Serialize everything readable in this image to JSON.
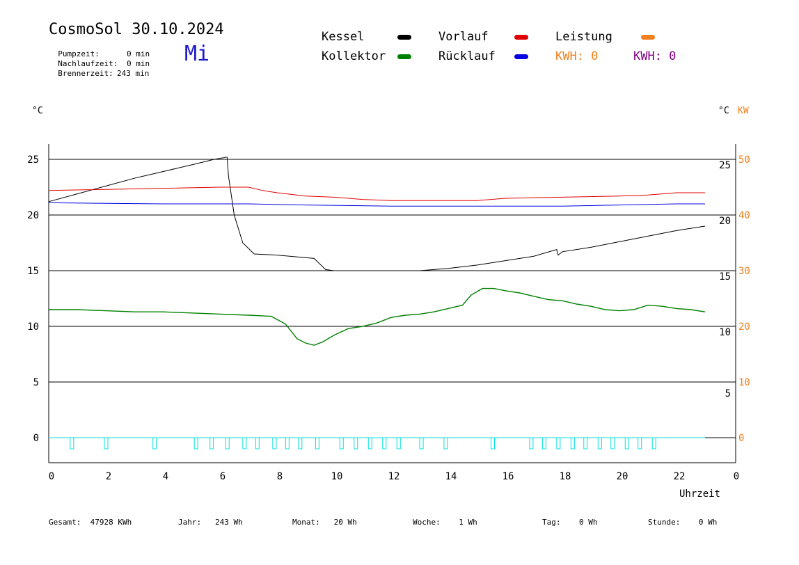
{
  "header": {
    "title": "CosmoSol 30.10.2024",
    "weekday": "Mi",
    "stats": [
      {
        "label": "Pumpzeit:",
        "value": "0 min"
      },
      {
        "label": "Nachlaufzeit:",
        "value": "0 min"
      },
      {
        "label": "Brennerzeit:",
        "value": "243 min"
      }
    ]
  },
  "legend": {
    "kessel": {
      "label": "Kessel",
      "color": "#000000"
    },
    "kollektor": {
      "label": "Kollektor",
      "color": "#008000"
    },
    "vorlauf": {
      "label": "Vorlauf",
      "color": "#e00000"
    },
    "ruecklauf": {
      "label": "Rücklauf",
      "color": "#0000e0"
    },
    "leistung": {
      "label": "Leistung",
      "color": "#f08020"
    },
    "kwh_orange": "KWH: 0",
    "kwh_purple": "KWH: 0",
    "kwh_orange_color": "#f08020",
    "kwh_purple_color": "#800080"
  },
  "footer": {
    "gesamt": "Gesamt:  47928 KWh",
    "jahr": "Jahr:   243 Wh",
    "monat": "Monat:   20 Wh",
    "woche": "Woche:    1 Wh",
    "tag": "Tag:    0 Wh",
    "stunde": "Stunde:    0 Wh"
  },
  "chart_data": {
    "type": "line",
    "xlabel": "Uhrzeit",
    "ylabel_left": "°C",
    "ylabel_right": "°C",
    "ylabel_right2": "KW",
    "xlim": [
      0,
      24
    ],
    "ylim": [
      -2,
      27
    ],
    "x_ticks": [
      "0",
      "2",
      "4",
      "6",
      "8",
      "10",
      "12",
      "14",
      "16",
      "18",
      "20",
      "22",
      "0"
    ],
    "y_ticks_left": [
      "25",
      "20",
      "15",
      "10",
      "5",
      "0"
    ],
    "y_ticks_left_values": [
      25,
      20,
      15,
      10,
      5,
      0
    ],
    "y_ticks_right": [
      "25",
      "20",
      "15",
      "10",
      "5"
    ],
    "y_ticks_right_values": [
      24.5,
      19.5,
      14.5,
      9.5,
      4.0
    ],
    "y_ticks_kw": [
      "50",
      "40",
      "30",
      "20",
      "10",
      "0"
    ],
    "y_ticks_kw_values": [
      25,
      20,
      15,
      10,
      5,
      0
    ],
    "gridlines_y": [
      25,
      20,
      15,
      10,
      5,
      0
    ],
    "series": [
      {
        "name": "Kessel",
        "color": "#000000",
        "x": [
          0,
          1,
          2,
          3,
          4,
          5,
          5.8,
          6.25,
          6.3,
          6.5,
          6.8,
          7.2,
          8,
          9.3,
          9.7,
          10,
          11,
          12,
          13,
          14,
          15,
          16,
          17,
          17.8,
          17.85,
          18,
          19,
          20,
          21,
          22,
          23
        ],
        "y": [
          21.2,
          21.9,
          22.6,
          23.3,
          23.9,
          24.5,
          25.0,
          25.2,
          23.5,
          20.0,
          17.5,
          16.5,
          16.4,
          16.1,
          15.1,
          15.0,
          15.0,
          15.0,
          15.0,
          15.2,
          15.5,
          15.9,
          16.3,
          16.9,
          16.4,
          16.7,
          17.1,
          17.6,
          18.1,
          18.6,
          19.0
        ]
      },
      {
        "name": "Vorlauf",
        "color": "#e00000",
        "x": [
          0,
          2,
          4,
          6,
          7,
          7.5,
          8,
          9,
          10,
          11,
          12,
          13,
          14,
          15,
          16,
          18,
          20,
          21,
          22,
          23
        ],
        "y": [
          22.2,
          22.3,
          22.4,
          22.5,
          22.5,
          22.2,
          22.0,
          21.7,
          21.6,
          21.4,
          21.3,
          21.3,
          21.3,
          21.3,
          21.5,
          21.6,
          21.7,
          21.8,
          22.0,
          22.0
        ]
      },
      {
        "name": "Rücklauf",
        "color": "#0000e0",
        "x": [
          0,
          4,
          7,
          9,
          12,
          14,
          16,
          18,
          20,
          22,
          23
        ],
        "y": [
          21.1,
          21.0,
          21.0,
          20.9,
          20.8,
          20.8,
          20.8,
          20.8,
          20.9,
          21.0,
          21.0
        ]
      },
      {
        "name": "Kollektor",
        "color": "#008000",
        "x": [
          0,
          1,
          2,
          3,
          4,
          5,
          6,
          7,
          7.8,
          8.3,
          8.7,
          9.0,
          9.3,
          9.6,
          10,
          10.5,
          11,
          11.5,
          12,
          12.5,
          13,
          13.5,
          14,
          14.5,
          14.8,
          15.2,
          15.6,
          16,
          16.5,
          17,
          17.5,
          18,
          18.5,
          19,
          19.5,
          20,
          20.5,
          21,
          21.5,
          22,
          22.5,
          23
        ],
        "y": [
          11.5,
          11.5,
          11.4,
          11.3,
          11.3,
          11.2,
          11.1,
          11.0,
          10.9,
          10.2,
          8.9,
          8.5,
          8.3,
          8.6,
          9.2,
          9.8,
          10.0,
          10.3,
          10.8,
          11.0,
          11.1,
          11.3,
          11.6,
          11.9,
          12.8,
          13.4,
          13.4,
          13.2,
          13.0,
          12.7,
          12.4,
          12.3,
          12.0,
          11.8,
          11.5,
          11.4,
          11.5,
          11.9,
          11.8,
          11.6,
          11.5,
          11.3
        ]
      }
    ],
    "pump_pulses_x": [
      0.8,
      2.0,
      3.7,
      5.15,
      5.7,
      6.25,
      6.85,
      7.3,
      7.9,
      8.35,
      8.8,
      9.4,
      10.25,
      10.75,
      11.25,
      11.75,
      12.25,
      13.05,
      13.9,
      15.55,
      16.9,
      17.35,
      17.85,
      18.35,
      18.8,
      19.3,
      19.75,
      20.25,
      20.7,
      21.2
    ],
    "pump_color": "#00e0e0"
  }
}
